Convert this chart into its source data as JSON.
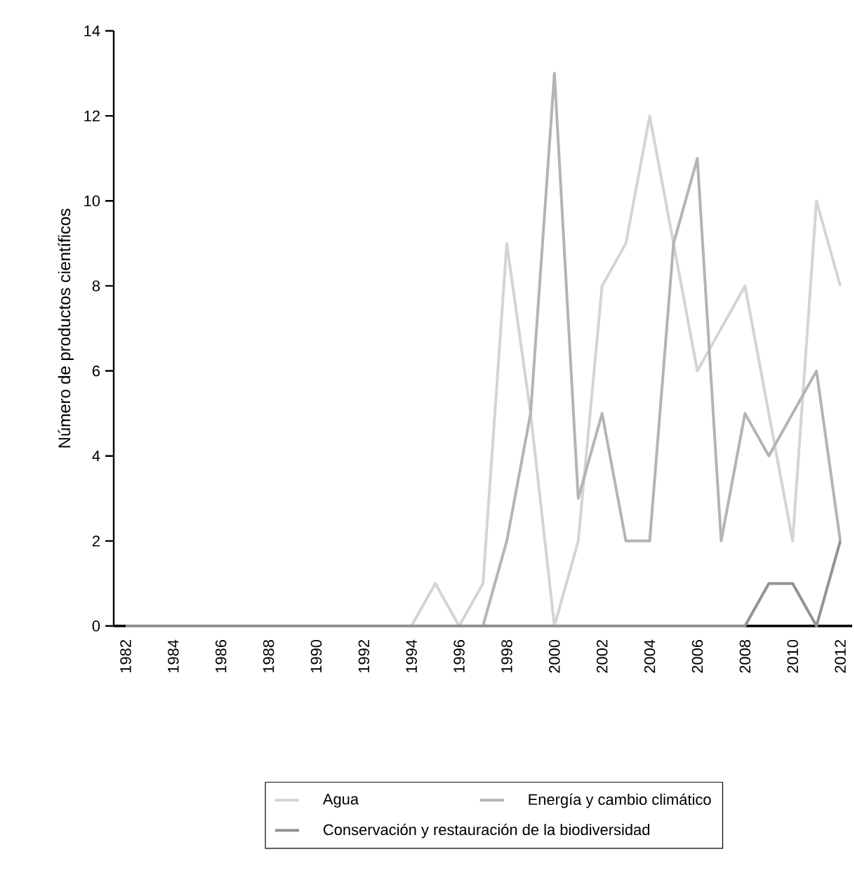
{
  "chart_data": {
    "type": "line",
    "ylabel": "Número de productos científicos",
    "x": [
      1982,
      1983,
      1984,
      1985,
      1986,
      1987,
      1988,
      1989,
      1990,
      1991,
      1992,
      1993,
      1994,
      1995,
      1996,
      1997,
      1998,
      1999,
      2000,
      2001,
      2002,
      2003,
      2004,
      2005,
      2006,
      2007,
      2008,
      2009,
      2010,
      2011,
      2012
    ],
    "series": [
      {
        "name": "Agua",
        "color": "#d4d4d4",
        "values": [
          0,
          0,
          0,
          0,
          0,
          0,
          0,
          0,
          0,
          0,
          0,
          0,
          0,
          1,
          0,
          1,
          9,
          5,
          0,
          2,
          8,
          9,
          12,
          9,
          6,
          7,
          8,
          5,
          2,
          10,
          8
        ]
      },
      {
        "name": "Energía y cambio climático",
        "color": "#b4b4b8",
        "values": [
          0,
          0,
          0,
          0,
          0,
          0,
          0,
          0,
          0,
          0,
          0,
          0,
          0,
          0,
          0,
          0,
          2,
          5,
          13,
          3,
          5,
          2,
          2,
          9,
          11,
          2,
          5,
          4,
          5,
          6,
          2
        ]
      },
      {
        "name": "Conservación y restauración de la biodiversidad",
        "color": "#939396",
        "values": [
          0,
          0,
          0,
          0,
          0,
          0,
          0,
          0,
          0,
          0,
          0,
          0,
          0,
          0,
          0,
          0,
          0,
          0,
          0,
          0,
          0,
          0,
          0,
          0,
          0,
          0,
          0,
          1,
          1,
          0,
          2
        ]
      }
    ],
    "xlim": [
      1981.5,
      2012.5
    ],
    "ylim": [
      0,
      14
    ],
    "xticks": [
      1982,
      1984,
      1986,
      1988,
      1990,
      1992,
      1994,
      1996,
      1998,
      2000,
      2002,
      2004,
      2006,
      2008,
      2010,
      2012
    ],
    "yticks": [
      0,
      2,
      4,
      6,
      8,
      10,
      12,
      14
    ],
    "grid": false,
    "legend": "bottom",
    "line_style": "solid"
  }
}
